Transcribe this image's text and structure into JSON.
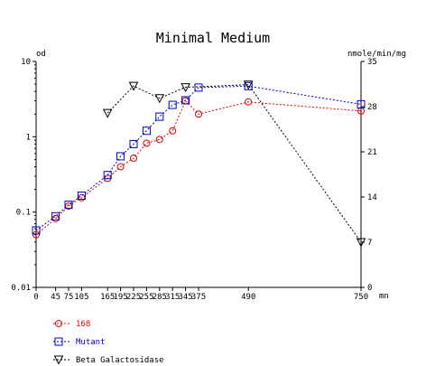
{
  "chart_data": {
    "type": "line",
    "title": "Minimal Medium",
    "x_unit": "mn",
    "y_left_unit": "od",
    "y_right_unit": "nmole/min/mg",
    "xlim": [
      0,
      750
    ],
    "ylim_left": [
      0.01,
      10
    ],
    "ylim_left_scale": "log",
    "ylim_right": [
      0,
      35
    ],
    "x_ticks": [
      0,
      45,
      75,
      105,
      165,
      195,
      225,
      255,
      285,
      315,
      345,
      375,
      490,
      750
    ],
    "x_tick_labels": [
      "0",
      "45",
      "75",
      "105",
      "165",
      "195",
      "225",
      "255",
      "285",
      "315",
      "345",
      "375",
      "490",
      "750"
    ],
    "y_left_ticks": [
      0.01,
      0.1,
      1,
      10
    ],
    "y_left_tick_labels": [
      "0.01",
      "0.1",
      "1",
      "10"
    ],
    "y_right_ticks": [
      0,
      7,
      14,
      21,
      28,
      35
    ],
    "y_right_tick_labels": [
      "0",
      "7",
      "14",
      "21",
      "28",
      "35"
    ],
    "grid": false,
    "legend_position": "bottom-left",
    "series": [
      {
        "name": "168",
        "axis": "left",
        "color": "#dd0000",
        "marker": "circle",
        "x": [
          0,
          45,
          75,
          105,
          165,
          195,
          225,
          255,
          285,
          315,
          345,
          375,
          490,
          750
        ],
        "y": [
          0.05,
          0.082,
          0.12,
          0.155,
          0.28,
          0.4,
          0.52,
          0.82,
          0.92,
          1.2,
          3.0,
          2.0,
          2.9,
          2.2
        ]
      },
      {
        "name": "Mutant",
        "axis": "left",
        "color": "#0000cc",
        "marker": "square",
        "x": [
          0,
          45,
          75,
          105,
          165,
          195,
          225,
          255,
          285,
          315,
          345,
          375,
          490,
          750
        ],
        "y": [
          0.057,
          0.088,
          0.125,
          0.165,
          0.31,
          0.55,
          0.8,
          1.2,
          1.85,
          2.65,
          3.05,
          4.5,
          4.7,
          2.7
        ]
      },
      {
        "name": "Beta Galactosidase",
        "axis": "right",
        "color": "#000000",
        "marker": "triangle-down",
        "x": [
          165,
          225,
          285,
          345,
          490,
          750
        ],
        "y": [
          27.0,
          31.2,
          29.3,
          31.0,
          31.4,
          7.0
        ]
      }
    ]
  }
}
